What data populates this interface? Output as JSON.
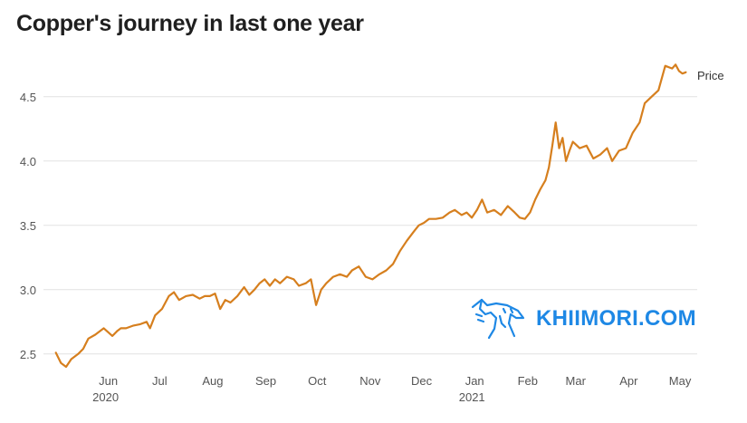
{
  "chart_data": {
    "type": "line",
    "title": "Copper's journey in last one year",
    "xlabel": "",
    "ylabel": "",
    "ylim": [
      2.4,
      4.9
    ],
    "y_ticks": [
      "2.5",
      "3.0",
      "3.5",
      "4.0",
      "4.5"
    ],
    "y_tick_values": [
      2.5,
      3.0,
      3.5,
      4.0,
      4.5
    ],
    "x_ticks": [
      {
        "label": "Jun",
        "year": "2020"
      },
      {
        "label": "Jul",
        "year": ""
      },
      {
        "label": "Aug",
        "year": ""
      },
      {
        "label": "Sep",
        "year": ""
      },
      {
        "label": "Oct",
        "year": ""
      },
      {
        "label": "Nov",
        "year": ""
      },
      {
        "label": "Dec",
        "year": ""
      },
      {
        "label": "Jan",
        "year": "2021"
      },
      {
        "label": "Feb",
        "year": ""
      },
      {
        "label": "Mar",
        "year": ""
      },
      {
        "label": "Apr",
        "year": ""
      },
      {
        "label": "May",
        "year": ""
      }
    ],
    "x_tick_dates": [
      "2020-06-01",
      "2020-07-01",
      "2020-08-01",
      "2020-09-01",
      "2020-10-01",
      "2020-11-01",
      "2020-12-01",
      "2021-01-01",
      "2021-02-01",
      "2021-03-01",
      "2021-04-01",
      "2021-05-01"
    ],
    "grid": true,
    "series": [
      {
        "name": "Price",
        "color": "#d67f1e",
        "x": [
          "2020-05-13",
          "2020-05-16",
          "2020-05-19",
          "2020-05-22",
          "2020-05-26",
          "2020-05-29",
          "2020-06-01",
          "2020-06-05",
          "2020-06-10",
          "2020-06-15",
          "2020-06-18",
          "2020-06-20",
          "2020-06-23",
          "2020-06-27",
          "2020-07-01",
          "2020-07-05",
          "2020-07-07",
          "2020-07-10",
          "2020-07-14",
          "2020-07-18",
          "2020-07-21",
          "2020-07-24",
          "2020-07-28",
          "2020-08-01",
          "2020-08-05",
          "2020-08-08",
          "2020-08-11",
          "2020-08-14",
          "2020-08-17",
          "2020-08-20",
          "2020-08-23",
          "2020-08-27",
          "2020-08-31",
          "2020-09-03",
          "2020-09-06",
          "2020-09-09",
          "2020-09-12",
          "2020-09-15",
          "2020-09-18",
          "2020-09-21",
          "2020-09-25",
          "2020-09-29",
          "2020-10-02",
          "2020-10-06",
          "2020-10-09",
          "2020-10-12",
          "2020-10-15",
          "2020-10-18",
          "2020-10-22",
          "2020-10-26",
          "2020-10-30",
          "2020-11-02",
          "2020-11-06",
          "2020-11-10",
          "2020-11-14",
          "2020-11-18",
          "2020-11-22",
          "2020-11-26",
          "2020-11-30",
          "2020-12-04",
          "2020-12-08",
          "2020-12-11",
          "2020-12-14",
          "2020-12-17",
          "2020-12-21",
          "2020-12-25",
          "2020-12-29",
          "2021-01-01",
          "2021-01-05",
          "2021-01-08",
          "2021-01-11",
          "2021-01-14",
          "2021-01-17",
          "2021-01-20",
          "2021-01-24",
          "2021-01-28",
          "2021-02-01",
          "2021-02-05",
          "2021-02-08",
          "2021-02-11",
          "2021-02-14",
          "2021-02-17",
          "2021-02-20",
          "2021-02-23",
          "2021-02-25",
          "2021-02-27",
          "2021-03-01",
          "2021-03-03",
          "2021-03-05",
          "2021-03-07",
          "2021-03-09",
          "2021-03-11",
          "2021-03-15",
          "2021-03-19",
          "2021-03-23",
          "2021-03-27",
          "2021-03-31",
          "2021-04-03",
          "2021-04-07",
          "2021-04-11",
          "2021-04-15",
          "2021-04-19",
          "2021-04-22",
          "2021-04-26",
          "2021-04-30",
          "2021-05-04",
          "2021-05-08",
          "2021-05-10",
          "2021-05-12",
          "2021-05-14",
          "2021-05-16"
        ],
        "y": [
          2.51,
          2.43,
          2.4,
          2.46,
          2.5,
          2.54,
          2.62,
          2.65,
          2.7,
          2.64,
          2.68,
          2.7,
          2.7,
          2.72,
          2.73,
          2.75,
          2.7,
          2.8,
          2.85,
          2.95,
          2.98,
          2.92,
          2.95,
          2.96,
          2.93,
          2.95,
          2.95,
          2.97,
          2.85,
          2.92,
          2.9,
          2.95,
          3.02,
          2.96,
          3.0,
          3.05,
          3.08,
          3.03,
          3.08,
          3.05,
          3.1,
          3.08,
          3.03,
          3.05,
          3.08,
          2.88,
          3.0,
          3.05,
          3.1,
          3.12,
          3.1,
          3.15,
          3.18,
          3.1,
          3.08,
          3.12,
          3.15,
          3.2,
          3.3,
          3.38,
          3.45,
          3.5,
          3.52,
          3.55,
          3.55,
          3.56,
          3.6,
          3.62,
          3.58,
          3.6,
          3.56,
          3.62,
          3.7,
          3.6,
          3.62,
          3.58,
          3.65,
          3.6,
          3.56,
          3.55,
          3.6,
          3.7,
          3.78,
          3.85,
          3.95,
          4.12,
          4.3,
          4.1,
          4.18,
          4.0,
          4.08,
          4.15,
          4.1,
          4.12,
          4.02,
          4.05,
          4.1,
          4.0,
          4.08,
          4.1,
          4.22,
          4.3,
          4.45,
          4.5,
          4.55,
          4.74,
          4.72,
          4.75,
          4.7,
          4.68,
          4.69
        ]
      }
    ]
  },
  "watermark": {
    "text": "KHIIMORI.COM",
    "color": "#1e88e5"
  }
}
